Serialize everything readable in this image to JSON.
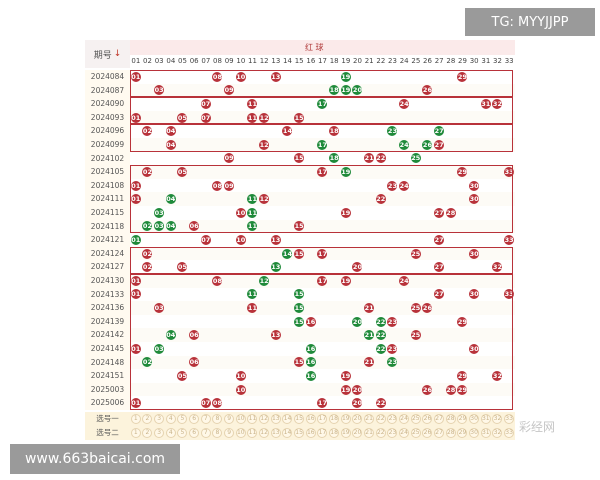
{
  "header": {
    "period_label": "期号",
    "sort_icon": "arrow-down-icon",
    "red_label": "红 球",
    "numbers": [
      "01",
      "02",
      "03",
      "04",
      "05",
      "06",
      "07",
      "08",
      "09",
      "10",
      "11",
      "12",
      "13",
      "14",
      "15",
      "16",
      "17",
      "18",
      "19",
      "20",
      "21",
      "22",
      "23",
      "24",
      "25",
      "26",
      "27",
      "28",
      "29",
      "30",
      "31",
      "32",
      "33"
    ]
  },
  "colors": {
    "red_ball": "#b8323a",
    "green_ball": "#1f8a3a",
    "group_border": "#b8323a"
  },
  "rows": [
    {
      "period": "2024084",
      "red": [
        1,
        8,
        10,
        13,
        29
      ],
      "green": [
        19
      ]
    },
    {
      "period": "2024087",
      "red": [
        3,
        9,
        26
      ],
      "green": [
        18,
        19,
        20
      ]
    },
    {
      "period": "2024090",
      "red": [
        7,
        11,
        24,
        31,
        32
      ],
      "green": [
        17
      ]
    },
    {
      "period": "2024093",
      "red": [
        1,
        5,
        7,
        11,
        12,
        15
      ],
      "green": []
    },
    {
      "period": "2024096",
      "red": [
        2,
        4,
        14,
        18
      ],
      "green": [
        23,
        27
      ]
    },
    {
      "period": "2024099",
      "red": [
        4,
        12,
        27
      ],
      "green": [
        17,
        24,
        26
      ]
    },
    {
      "period": "2024102",
      "red": [
        9,
        15,
        21,
        22
      ],
      "green": [
        18,
        25
      ]
    },
    {
      "period": "2024105",
      "red": [
        2,
        5,
        17,
        29,
        33
      ],
      "green": [
        19
      ]
    },
    {
      "period": "2024108",
      "red": [
        1,
        8,
        9,
        23,
        24,
        30
      ],
      "green": []
    },
    {
      "period": "2024111",
      "red": [
        1,
        12,
        22,
        30
      ],
      "green": [
        4,
        11
      ]
    },
    {
      "period": "2024115",
      "red": [
        10,
        19,
        27,
        28
      ],
      "green": [
        3,
        11
      ]
    },
    {
      "period": "2024118",
      "red": [
        6,
        15
      ],
      "green": [
        2,
        3,
        4,
        11
      ]
    },
    {
      "period": "2024121",
      "red": [
        7,
        10,
        13,
        27,
        33
      ],
      "green": [
        1
      ]
    },
    {
      "period": "2024124",
      "red": [
        2,
        15,
        17,
        25,
        30
      ],
      "green": [
        14
      ]
    },
    {
      "period": "2024127",
      "red": [
        2,
        5,
        20,
        27,
        32
      ],
      "green": [
        13
      ]
    },
    {
      "period": "2024130",
      "red": [
        1,
        8,
        17,
        19,
        24
      ],
      "green": [
        12
      ]
    },
    {
      "period": "2024133",
      "red": [
        1,
        27,
        30,
        33
      ],
      "green": [
        11,
        15
      ]
    },
    {
      "period": "2024136",
      "red": [
        3,
        11,
        21,
        25,
        26
      ],
      "green": [
        15
      ]
    },
    {
      "period": "2024139",
      "red": [
        16,
        23,
        29
      ],
      "green": [
        15,
        20,
        22
      ]
    },
    {
      "period": "2024142",
      "red": [
        6,
        13,
        25
      ],
      "green": [
        4,
        21,
        22
      ]
    },
    {
      "period": "2024145",
      "red": [
        1,
        23,
        30
      ],
      "green": [
        3,
        16,
        22
      ]
    },
    {
      "period": "2024148",
      "red": [
        6,
        15,
        21
      ],
      "green": [
        2,
        16,
        23
      ]
    },
    {
      "period": "2024151",
      "red": [
        5,
        10,
        19,
        29,
        32
      ],
      "green": [
        16
      ]
    },
    {
      "period": "2025003",
      "red": [
        10,
        19,
        20,
        26,
        28,
        29
      ],
      "green": []
    },
    {
      "period": "2025006",
      "red": [
        1,
        7,
        8,
        17,
        20,
        22
      ],
      "green": []
    }
  ],
  "groups": [
    [
      0,
      1
    ],
    [
      2,
      3
    ],
    [
      4,
      5
    ],
    [
      7,
      11
    ],
    [
      13,
      14
    ],
    [
      15,
      24
    ]
  ],
  "footer": {
    "pick1_label": "选号一",
    "pick2_label": "选号二",
    "pick_numbers": [
      "1",
      "2",
      "3",
      "4",
      "5",
      "6",
      "7",
      "8",
      "9",
      "10",
      "11",
      "12",
      "13",
      "14",
      "15",
      "16",
      "17",
      "18",
      "19",
      "20",
      "21",
      "22",
      "23",
      "24",
      "25",
      "26",
      "27",
      "28",
      "29",
      "30",
      "31",
      "32",
      "33"
    ]
  },
  "overlays": {
    "top_right": "TG: MYYJJPP",
    "bottom_left": "www.663baicai.com",
    "watermark": "彩经网"
  }
}
